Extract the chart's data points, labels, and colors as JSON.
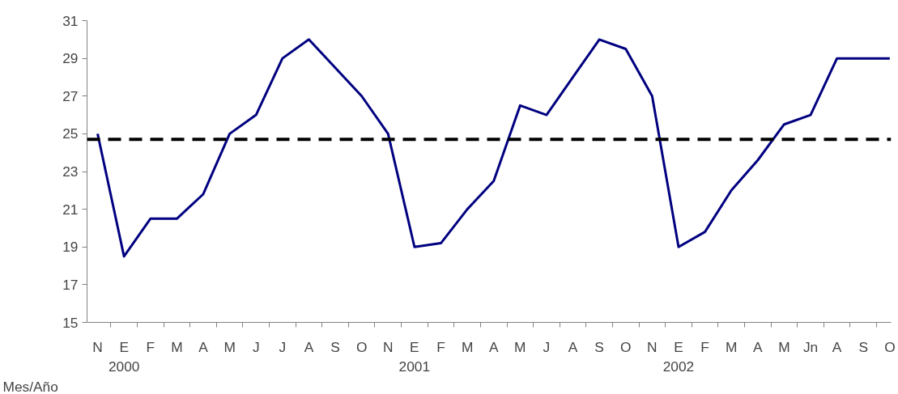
{
  "chart_data": {
    "type": "line",
    "xlabel": "Mes/Año",
    "categories": [
      "N",
      "E\n2000",
      "F",
      "M",
      "A",
      "M",
      "J",
      "J",
      "A",
      "S",
      "O",
      "N",
      "E\n2001",
      "F",
      "M",
      "A",
      "M",
      "J",
      "A",
      "S",
      "O",
      "N",
      "E\n2002",
      "F",
      "M",
      "A",
      "M",
      "Jn",
      "A",
      "S",
      "O"
    ],
    "series": [
      {
        "color": "#000080",
        "values": [
          25,
          18.5,
          20.5,
          20.5,
          21.8,
          25,
          26,
          29,
          30,
          28.5,
          27,
          25,
          19,
          19.2,
          21,
          22.5,
          26.5,
          26,
          28,
          30,
          29.5,
          27,
          19,
          19.8,
          22,
          23.6,
          25.5,
          26,
          29,
          29,
          29
        ]
      }
    ],
    "ylim": [
      15,
      31
    ],
    "yticks": [
      15,
      17,
      19,
      21,
      23,
      25,
      27,
      29,
      31
    ],
    "ref_lines": [
      {
        "axis": "y",
        "value": 24.7,
        "color": "#000000",
        "line_style": "dashed"
      }
    ],
    "grid": false,
    "marker": "none",
    "line_style": "solid"
  }
}
